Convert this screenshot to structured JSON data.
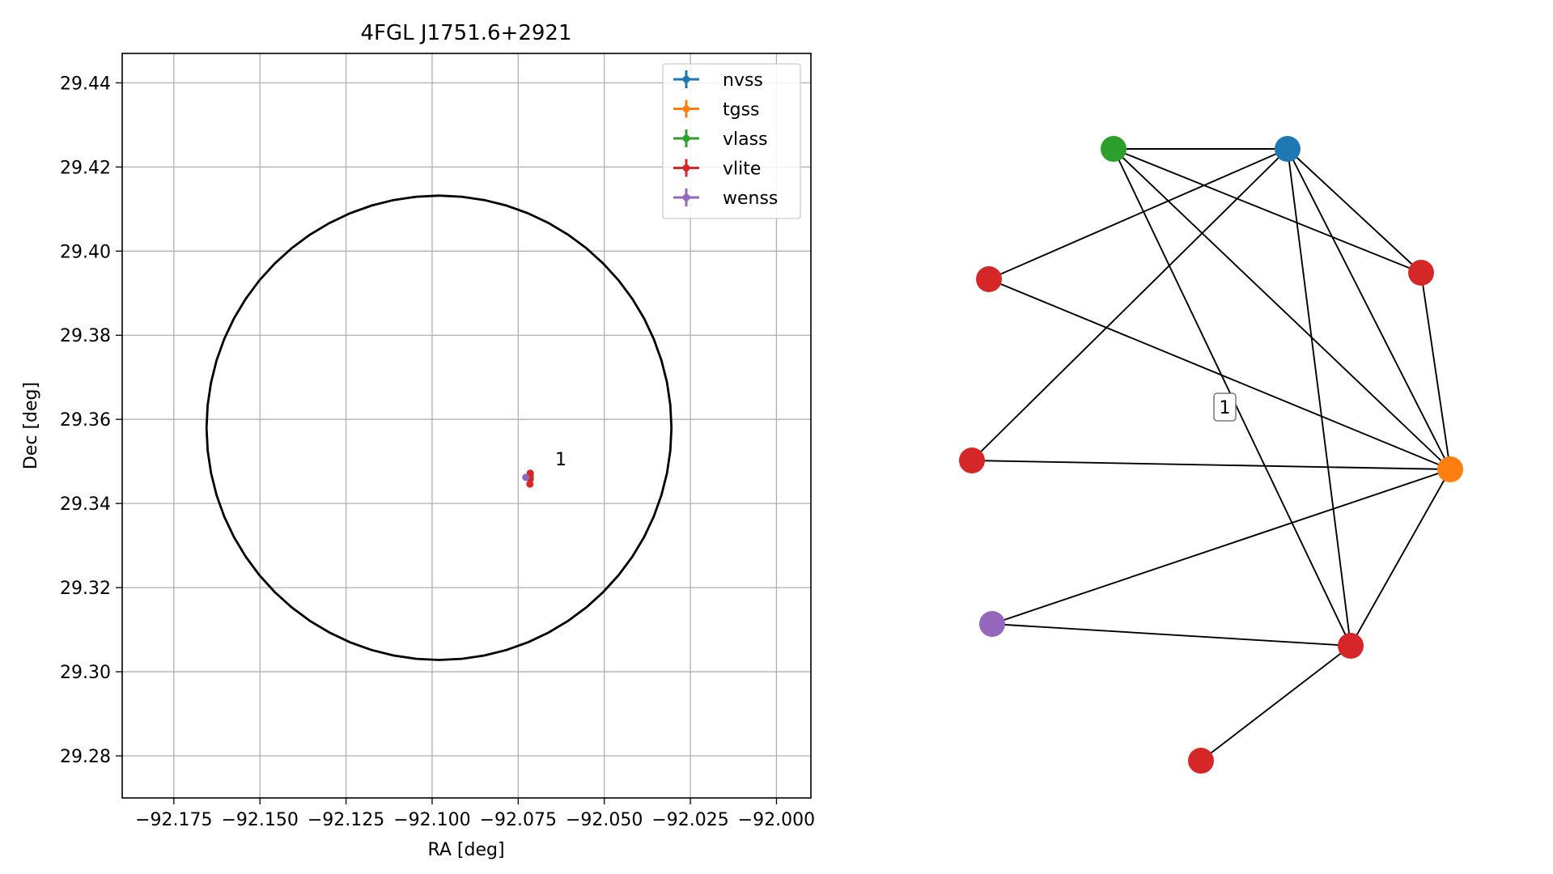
{
  "colors": {
    "nvss": "#1f77b4",
    "tgss": "#ff7f0e",
    "vlass": "#2ca02c",
    "vlite": "#d62728",
    "wenss": "#9467bd",
    "circle": "#000000",
    "grid": "#b0b0b0"
  },
  "chart_data": [
    {
      "type": "scatter",
      "title": "4FGL J1751.6+2921",
      "xlabel": "RA [deg]",
      "ylabel": "Dec [deg]",
      "xlim": [
        -92.19,
        -91.99
      ],
      "ylim": [
        29.27,
        29.447
      ],
      "grid": true,
      "legend_position": "top-right",
      "x_ticks": [
        -92.175,
        -92.15,
        -92.125,
        -92.1,
        -92.075,
        -92.05,
        -92.025,
        -92.0
      ],
      "x_tick_labels": [
        "−92.175",
        "−92.150",
        "−92.125",
        "−92.100",
        "−92.075",
        "−92.050",
        "−92.025",
        "−92.000"
      ],
      "y_ticks": [
        29.28,
        29.3,
        29.32,
        29.34,
        29.36,
        29.38,
        29.4,
        29.42,
        29.44
      ],
      "y_tick_labels": [
        "29.28",
        "29.30",
        "29.32",
        "29.34",
        "29.36",
        "29.38",
        "29.40",
        "29.42",
        "29.44"
      ],
      "series": [
        {
          "name": "nvss",
          "points": [
            [
              -92.0715,
              29.3465
            ]
          ]
        },
        {
          "name": "tgss",
          "points": [
            [
              -92.0715,
              29.3462
            ]
          ]
        },
        {
          "name": "vlass",
          "points": [
            [
              -92.0715,
              29.3466
            ]
          ]
        },
        {
          "name": "vlite",
          "points": [
            [
              -92.0715,
              29.3472
            ],
            [
              -92.0715,
              29.3458
            ],
            [
              -92.0716,
              29.3446
            ]
          ]
        },
        {
          "name": "wenss",
          "points": [
            [
              -92.0728,
              29.3462
            ]
          ]
        }
      ],
      "circle": {
        "center": [
          -92.098,
          29.358
        ],
        "radius_dec": 0.0552,
        "radius_ra": 0.0675
      },
      "annotations": [
        {
          "text": "1",
          "x": -92.0695,
          "y": 29.3485
        }
      ]
    },
    {
      "type": "network",
      "label": "1",
      "nodes": [
        {
          "id": "vlass",
          "series": "vlass"
        },
        {
          "id": "nvss",
          "series": "nvss"
        },
        {
          "id": "vlite_a",
          "series": "vlite"
        },
        {
          "id": "vlite_b",
          "series": "vlite"
        },
        {
          "id": "vlite_c",
          "series": "vlite"
        },
        {
          "id": "tgss",
          "series": "tgss"
        },
        {
          "id": "wenss",
          "series": "wenss"
        },
        {
          "id": "vlite_d",
          "series": "vlite"
        },
        {
          "id": "vlite_e",
          "series": "vlite"
        }
      ],
      "edges": [
        [
          "vlass",
          "nvss"
        ],
        [
          "vlass",
          "vlite_b"
        ],
        [
          "vlass",
          "tgss"
        ],
        [
          "vlass",
          "vlite_d"
        ],
        [
          "nvss",
          "vlite_a"
        ],
        [
          "nvss",
          "vlite_b"
        ],
        [
          "nvss",
          "vlite_c"
        ],
        [
          "nvss",
          "tgss"
        ],
        [
          "nvss",
          "vlite_d"
        ],
        [
          "vlite_a",
          "tgss"
        ],
        [
          "vlite_c",
          "tgss"
        ],
        [
          "vlite_b",
          "tgss"
        ],
        [
          "tgss",
          "wenss"
        ],
        [
          "tgss",
          "vlite_d"
        ],
        [
          "wenss",
          "vlite_d"
        ],
        [
          "vlite_d",
          "vlite_e"
        ]
      ]
    }
  ]
}
